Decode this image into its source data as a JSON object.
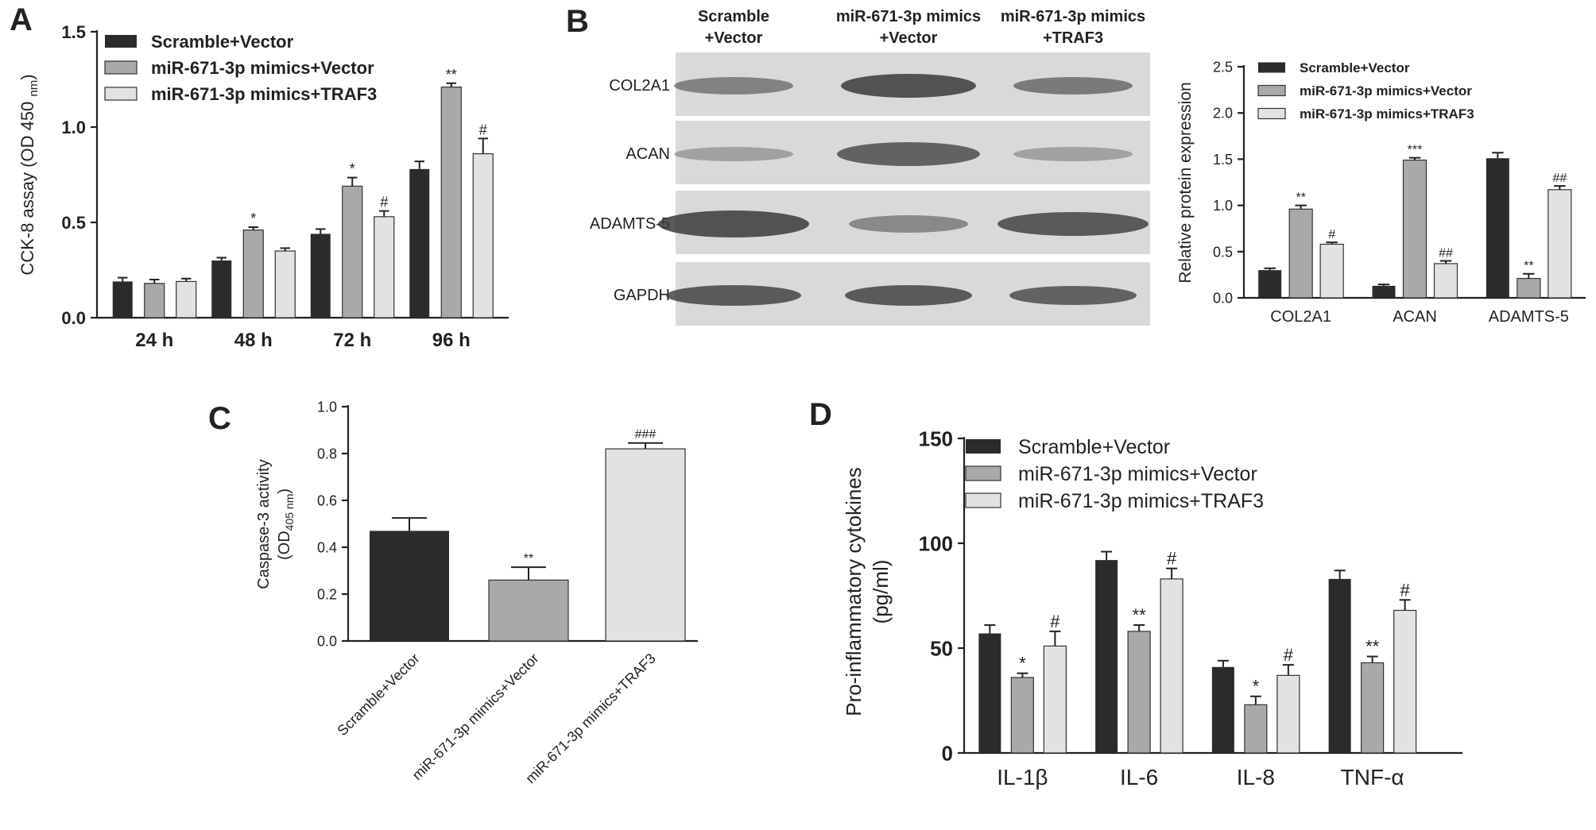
{
  "colors": {
    "dark": "#2b2b2b",
    "mid": "#a9a9a9",
    "light": "#e2e2e2",
    "axis": "#222222",
    "blot_bg": "#d9d9d9",
    "blot_band": "#3a3a3a"
  },
  "panels": {
    "A": {
      "letter": "A"
    },
    "B": {
      "letter": "B",
      "blot": {
        "columns": [
          "Scramble\n+Vector",
          "miR-671-3p mimics\n+Vector",
          "miR-671-3p mimics\n+TRAF3"
        ],
        "rows": [
          "COL2A1",
          "ACAN",
          "ADAMTS-5",
          "GAPDH"
        ]
      }
    },
    "C": {
      "letter": "C"
    },
    "D": {
      "letter": "D"
    }
  },
  "chart_data": [
    {
      "id": "A",
      "type": "bar",
      "ylabel": "CCK-8 assay (OD 450 nm)",
      "ylim": [
        0,
        1.5
      ],
      "yticks": [
        "0.0",
        "0.5",
        "1.0",
        "1.5"
      ],
      "categories": [
        "24 h",
        "48 h",
        "72 h",
        "96 h"
      ],
      "legend": "top-left",
      "series": [
        {
          "name": "Scramble+Vector",
          "values": [
            0.19,
            0.3,
            0.44,
            0.78
          ],
          "errors": [
            0.02,
            0.015,
            0.025,
            0.04
          ],
          "marks": [
            "",
            "",
            "",
            ""
          ]
        },
        {
          "name": "miR-671-3p mimics+Vector",
          "values": [
            0.18,
            0.46,
            0.69,
            1.21
          ],
          "errors": [
            0.02,
            0.015,
            0.045,
            0.02
          ],
          "marks": [
            "",
            "*",
            "*",
            "**"
          ]
        },
        {
          "name": "miR-671-3p mimics+TRAF3",
          "values": [
            0.19,
            0.35,
            0.53,
            0.86
          ],
          "errors": [
            0.015,
            0.015,
            0.03,
            0.08
          ],
          "marks": [
            "",
            "",
            "#",
            "#"
          ]
        }
      ]
    },
    {
      "id": "B",
      "type": "bar",
      "ylabel": "Relative protein expression",
      "ylim": [
        0,
        2.5
      ],
      "yticks": [
        "0.0",
        "0.5",
        "1.0",
        "1.5",
        "2.0",
        "2.5"
      ],
      "categories": [
        "COL2A1",
        "ACAN",
        "ADAMTS-5"
      ],
      "legend": "top-left",
      "series": [
        {
          "name": "Scramble+Vector",
          "values": [
            0.3,
            0.13,
            1.51
          ],
          "errors": [
            0.02,
            0.015,
            0.06
          ],
          "marks": [
            "",
            "",
            ""
          ]
        },
        {
          "name": "miR-671-3p mimics+Vector",
          "values": [
            0.96,
            1.49,
            0.21
          ],
          "errors": [
            0.04,
            0.025,
            0.05
          ],
          "marks": [
            "**",
            "***",
            "**"
          ]
        },
        {
          "name": "miR-671-3p mimics+TRAF3",
          "values": [
            0.58,
            0.37,
            1.17
          ],
          "errors": [
            0.02,
            0.03,
            0.04
          ],
          "marks": [
            "#",
            "##",
            "##"
          ]
        }
      ]
    },
    {
      "id": "C",
      "type": "bar",
      "ylabel": "Caspase-3 activity",
      "ylabel2": "(OD",
      "ylabel2_sub": "405 nm",
      "ylabel2_end": ")",
      "ylim": [
        0,
        1.0
      ],
      "yticks": [
        "0.0",
        "0.2",
        "0.4",
        "0.6",
        "0.8",
        "1.0"
      ],
      "categories": [
        "Scramble+Vector",
        "miR-671-3p mimics+Vector",
        "miR-671-3p mimics+TRAF3"
      ],
      "values": [
        0.47,
        0.26,
        0.82
      ],
      "errors": [
        0.055,
        0.055,
        0.025
      ],
      "marks": [
        "",
        "**",
        "###"
      ]
    },
    {
      "id": "D",
      "type": "bar",
      "ylabel": "Pro-inflammatory cytokines",
      "ylabel2": "(pg/ml)",
      "ylim": [
        0,
        150
      ],
      "yticks": [
        "0",
        "50",
        "100",
        "150"
      ],
      "categories": [
        "IL-1β",
        "IL-6",
        "IL-8",
        "TNF-α"
      ],
      "legend": "top-left",
      "series": [
        {
          "name": "Scramble+Vector",
          "values": [
            57,
            92,
            41,
            83
          ],
          "errors": [
            4,
            4,
            3,
            4
          ],
          "marks": [
            "",
            "",
            "",
            ""
          ]
        },
        {
          "name": "miR-671-3p mimics+Vector",
          "values": [
            36,
            58,
            23,
            43
          ],
          "errors": [
            2,
            3,
            4,
            3
          ],
          "marks": [
            "*",
            "**",
            "*",
            "**"
          ]
        },
        {
          "name": "miR-671-3p mimics+TRAF3",
          "values": [
            51,
            83,
            37,
            68
          ],
          "errors": [
            7,
            5,
            5,
            5
          ],
          "marks": [
            "#",
            "#",
            "#",
            "#"
          ]
        }
      ]
    }
  ]
}
